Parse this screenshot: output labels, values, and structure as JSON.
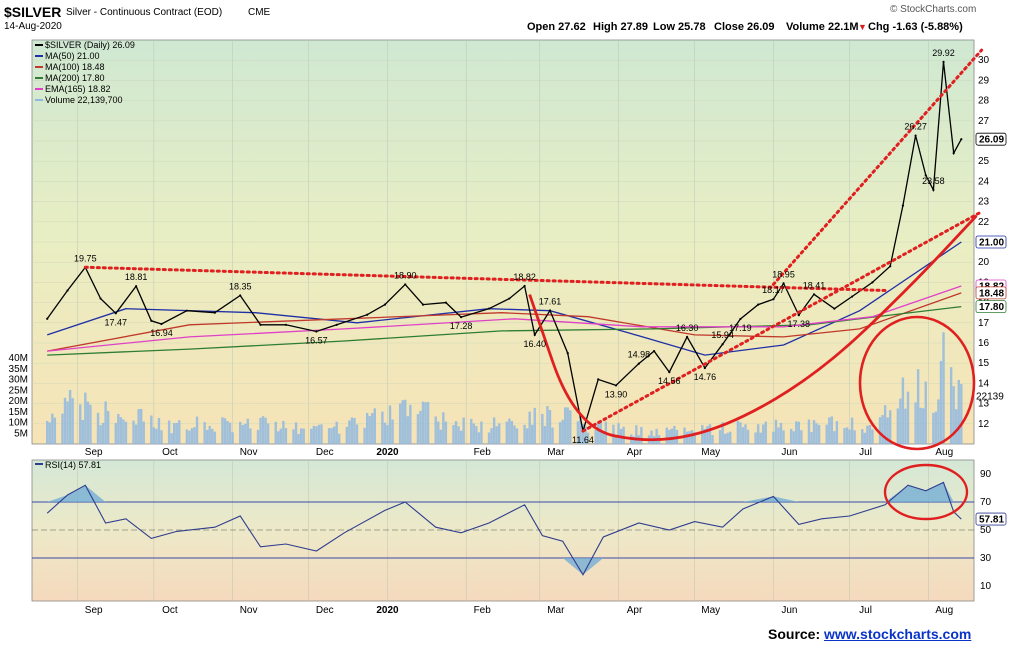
{
  "header": {
    "symbol": "$SILVER",
    "name": "Silver - Continuous Contract (EOD)",
    "exchange": "CME",
    "date": "14-Aug-2020",
    "copyright": "© StockCharts.com",
    "ohlc": {
      "open": "Open 27.62",
      "high": "High 27.89",
      "low": "Low 25.78",
      "close": "Close 26.09",
      "volume": "Volume 22.1M",
      "change": "Chg -1.63 (-5.88%)"
    },
    "change_arrow": "▼"
  },
  "legend": [
    {
      "text": "$SILVER (Daily) 26.09",
      "color": "#000000"
    },
    {
      "text": "MA(50) 21.00",
      "color": "#1f2fa6"
    },
    {
      "text": "MA(100) 18.48",
      "color": "#c0392b"
    },
    {
      "text": "MA(200) 17.80",
      "color": "#2e7d32"
    },
    {
      "text": "EMA(165) 18.82",
      "color": "#e040c8"
    },
    {
      "text": "Volume 22,139,700",
      "color": "#8fb8e0"
    }
  ],
  "rsi_legend": "RSI(14) 57.81",
  "source": {
    "prefix": "Source: ",
    "link": "www.stockcharts.com"
  },
  "chart_data": [
    {
      "type": "line",
      "title": "$SILVER (Daily)",
      "x_tick_labels": [
        "Sep",
        "Oct",
        "Nov",
        "Dec",
        "2020",
        "Feb",
        "Mar",
        "Apr",
        "May",
        "Jun",
        "Jul",
        "Aug"
      ],
      "y_tick_labels": [
        "12",
        "13",
        "14",
        "15",
        "16",
        "17",
        "18",
        "19",
        "20",
        "21",
        "22",
        "23",
        "24",
        "25",
        "26",
        "27",
        "28",
        "29",
        "30"
      ],
      "volume_axis_labels": [
        "5M",
        "10M",
        "15M",
        "20M",
        "25M",
        "30M",
        "35M",
        "40M"
      ],
      "ylim": [
        11,
        31
      ],
      "price_series": [
        {
          "date": "2019-08-20",
          "close": 17.2
        },
        {
          "date": "2019-08-28",
          "close": 18.6
        },
        {
          "date": "2019-09-04",
          "close": 19.75
        },
        {
          "date": "2019-09-10",
          "close": 18.2
        },
        {
          "date": "2019-09-16",
          "close": 17.47
        },
        {
          "date": "2019-09-24",
          "close": 18.81
        },
        {
          "date": "2019-09-30",
          "close": 17.1
        },
        {
          "date": "2019-10-04",
          "close": 16.94
        },
        {
          "date": "2019-10-14",
          "close": 17.6
        },
        {
          "date": "2019-10-25",
          "close": 17.5
        },
        {
          "date": "2019-11-04",
          "close": 18.35
        },
        {
          "date": "2019-11-12",
          "close": 16.9
        },
        {
          "date": "2019-11-22",
          "close": 16.9
        },
        {
          "date": "2019-12-04",
          "close": 16.57
        },
        {
          "date": "2019-12-12",
          "close": 16.9
        },
        {
          "date": "2019-12-24",
          "close": 17.4
        },
        {
          "date": "2019-12-31",
          "close": 17.9
        },
        {
          "date": "2020-01-08",
          "close": 18.9
        },
        {
          "date": "2020-01-15",
          "close": 17.9
        },
        {
          "date": "2020-01-24",
          "close": 18.0
        },
        {
          "date": "2020-01-30",
          "close": 17.28
        },
        {
          "date": "2020-02-10",
          "close": 17.7
        },
        {
          "date": "2020-02-18",
          "close": 18.2
        },
        {
          "date": "2020-02-24",
          "close": 18.82
        },
        {
          "date": "2020-02-28",
          "close": 16.4
        },
        {
          "date": "2020-03-05",
          "close": 17.61
        },
        {
          "date": "2020-03-12",
          "close": 15.5
        },
        {
          "date": "2020-03-18",
          "close": 11.64
        },
        {
          "date": "2020-03-24",
          "close": 14.2
        },
        {
          "date": "2020-03-31",
          "close": 13.9
        },
        {
          "date": "2020-04-09",
          "close": 14.98
        },
        {
          "date": "2020-04-15",
          "close": 15.6
        },
        {
          "date": "2020-04-21",
          "close": 14.56
        },
        {
          "date": "2020-04-28",
          "close": 16.3
        },
        {
          "date": "2020-05-05",
          "close": 14.76
        },
        {
          "date": "2020-05-12",
          "close": 15.94
        },
        {
          "date": "2020-05-19",
          "close": 17.19
        },
        {
          "date": "2020-05-26",
          "close": 17.9
        },
        {
          "date": "2020-06-01",
          "close": 18.17
        },
        {
          "date": "2020-06-05",
          "close": 18.95
        },
        {
          "date": "2020-06-11",
          "close": 17.38
        },
        {
          "date": "2020-06-17",
          "close": 18.41
        },
        {
          "date": "2020-06-25",
          "close": 17.7
        },
        {
          "date": "2020-07-02",
          "close": 18.3
        },
        {
          "date": "2020-07-10",
          "close": 19.0
        },
        {
          "date": "2020-07-17",
          "close": 19.8
        },
        {
          "date": "2020-07-22",
          "close": 22.8
        },
        {
          "date": "2020-07-27",
          "close": 26.27
        },
        {
          "date": "2020-07-31",
          "close": 24.3
        },
        {
          "date": "2020-08-03",
          "close": 23.58
        },
        {
          "date": "2020-08-07",
          "close": 29.92
        },
        {
          "date": "2020-08-11",
          "close": 25.4
        },
        {
          "date": "2020-08-14",
          "close": 26.09
        }
      ],
      "price_annotations": [
        {
          "date": "2019-09-04",
          "value": "19.75"
        },
        {
          "date": "2019-09-16",
          "value": "17.47"
        },
        {
          "date": "2019-09-24",
          "value": "18.81"
        },
        {
          "date": "2019-10-04",
          "value": "16.94"
        },
        {
          "date": "2019-11-04",
          "value": "18.35"
        },
        {
          "date": "2019-12-04",
          "value": "16.57"
        },
        {
          "date": "2020-01-08",
          "value": "18.90"
        },
        {
          "date": "2020-01-30",
          "value": "17.28"
        },
        {
          "date": "2020-02-24",
          "value": "18.82"
        },
        {
          "date": "2020-02-28",
          "value": "16.40"
        },
        {
          "date": "2020-03-05",
          "value": "17.61"
        },
        {
          "date": "2020-03-18",
          "value": "11.64"
        },
        {
          "date": "2020-03-31",
          "value": "13.90"
        },
        {
          "date": "2020-04-09",
          "value": "14.98"
        },
        {
          "date": "2020-04-21",
          "value": "14.56"
        },
        {
          "date": "2020-04-28",
          "value": "16.30"
        },
        {
          "date": "2020-05-05",
          "value": "14.76"
        },
        {
          "date": "2020-05-12",
          "value": "15.94"
        },
        {
          "date": "2020-05-19",
          "value": "17.19"
        },
        {
          "date": "2020-06-01",
          "value": "18.17"
        },
        {
          "date": "2020-06-05",
          "value": "18.95"
        },
        {
          "date": "2020-06-11",
          "value": "17.38"
        },
        {
          "date": "2020-06-17",
          "value": "18.41"
        },
        {
          "date": "2020-07-27",
          "value": "26.27"
        },
        {
          "date": "2020-08-03",
          "value": "23.58"
        },
        {
          "date": "2020-08-07",
          "value": "29.92"
        }
      ],
      "moving_averages": [
        {
          "name": "MA(50)",
          "color": "#1f2fa6",
          "last": 21.0,
          "points": [
            {
              "date": "2019-08-20",
              "v": 16.4
            },
            {
              "date": "2019-09-20",
              "v": 17.7
            },
            {
              "date": "2019-11-10",
              "v": 17.5
            },
            {
              "date": "2019-12-20",
              "v": 17.0
            },
            {
              "date": "2020-02-10",
              "v": 17.7
            },
            {
              "date": "2020-03-05",
              "v": 17.6
            },
            {
              "date": "2020-04-05",
              "v": 16.5
            },
            {
              "date": "2020-05-05",
              "v": 15.4
            },
            {
              "date": "2020-06-05",
              "v": 15.9
            },
            {
              "date": "2020-07-05",
              "v": 17.6
            },
            {
              "date": "2020-08-14",
              "v": 21.0
            }
          ]
        },
        {
          "name": "MA(100)",
          "color": "#c0392b",
          "last": 18.48,
          "points": [
            {
              "date": "2019-08-20",
              "v": 15.6
            },
            {
              "date": "2019-10-15",
              "v": 16.9
            },
            {
              "date": "2019-12-15",
              "v": 17.2
            },
            {
              "date": "2020-02-15",
              "v": 17.5
            },
            {
              "date": "2020-03-20",
              "v": 17.3
            },
            {
              "date": "2020-05-01",
              "v": 16.4
            },
            {
              "date": "2020-06-05",
              "v": 16.3
            },
            {
              "date": "2020-07-05",
              "v": 16.7
            },
            {
              "date": "2020-08-14",
              "v": 18.48
            }
          ]
        },
        {
          "name": "MA(200)",
          "color": "#2e7d32",
          "last": 17.8,
          "points": [
            {
              "date": "2019-08-20",
              "v": 15.4
            },
            {
              "date": "2019-10-15",
              "v": 15.7
            },
            {
              "date": "2019-12-15",
              "v": 16.1
            },
            {
              "date": "2020-02-15",
              "v": 16.6
            },
            {
              "date": "2020-04-15",
              "v": 16.7
            },
            {
              "date": "2020-06-15",
              "v": 16.9
            },
            {
              "date": "2020-08-14",
              "v": 17.8
            }
          ]
        },
        {
          "name": "EMA(165)",
          "color": "#e040c8",
          "last": 18.82,
          "points": [
            {
              "date": "2019-08-20",
              "v": 15.6
            },
            {
              "date": "2019-10-15",
              "v": 16.3
            },
            {
              "date": "2019-12-15",
              "v": 16.7
            },
            {
              "date": "2020-02-20",
              "v": 17.2
            },
            {
              "date": "2020-04-10",
              "v": 16.8
            },
            {
              "date": "2020-06-05",
              "v": 16.8
            },
            {
              "date": "2020-07-10",
              "v": 17.3
            },
            {
              "date": "2020-08-14",
              "v": 18.82
            }
          ]
        }
      ],
      "right_axis_value_tags": [
        {
          "value": 26.09,
          "label": "26.09"
        },
        {
          "value": 21.0,
          "label": "21.00"
        },
        {
          "value": 18.82,
          "label": "18.82"
        },
        {
          "value": 18.48,
          "label": "18.48"
        },
        {
          "value": 17.8,
          "label": "17.80"
        }
      ],
      "volume_last_label": "22139",
      "volume_millions": [
        {
          "date": "2019-08-20",
          "v": 9
        },
        {
          "date": "2019-08-30",
          "v": 20
        },
        {
          "date": "2019-09-10",
          "v": 14
        },
        {
          "date": "2019-09-25",
          "v": 12
        },
        {
          "date": "2019-10-10",
          "v": 8
        },
        {
          "date": "2019-10-30",
          "v": 10
        },
        {
          "date": "2019-11-15",
          "v": 9
        },
        {
          "date": "2019-12-10",
          "v": 7
        },
        {
          "date": "2020-01-08",
          "v": 18
        },
        {
          "date": "2020-01-25",
          "v": 10
        },
        {
          "date": "2020-02-15",
          "v": 9
        },
        {
          "date": "2020-02-28",
          "v": 14
        },
        {
          "date": "2020-03-10",
          "v": 13
        },
        {
          "date": "2020-03-18",
          "v": 8
        },
        {
          "date": "2020-04-10",
          "v": 6
        },
        {
          "date": "2020-05-10",
          "v": 7
        },
        {
          "date": "2020-06-05",
          "v": 9
        },
        {
          "date": "2020-07-10",
          "v": 9
        },
        {
          "date": "2020-07-27",
          "v": 27
        },
        {
          "date": "2020-08-03",
          "v": 22
        },
        {
          "date": "2020-08-07",
          "v": 38
        },
        {
          "date": "2020-08-14",
          "v": 22
        }
      ],
      "trend_lines": [
        {
          "style": "dotted",
          "color": "#e02020",
          "from": {
            "date": "2019-09-04",
            "v": 19.75
          },
          "to": {
            "date": "2020-07-15",
            "v": 18.6
          }
        },
        {
          "style": "dotted",
          "color": "#e02020",
          "from": {
            "date": "2020-03-18",
            "v": 11.64
          },
          "to": {
            "date": "2020-08-22",
            "v": 22.5
          }
        },
        {
          "style": "dotted",
          "color": "#e02020",
          "from": {
            "date": "2020-06-01",
            "v": 18.9
          },
          "to": {
            "date": "2020-08-22",
            "v": 30.5
          }
        }
      ],
      "curve_annotation": {
        "color": "#e02020",
        "points": [
          {
            "date": "2020-02-26",
            "v": 18.4
          },
          {
            "date": "2020-03-15",
            "v": 11.8
          },
          {
            "date": "2020-04-15",
            "v": 11.0
          },
          {
            "date": "2020-05-15",
            "v": 11.9
          },
          {
            "date": "2020-06-20",
            "v": 14.6
          },
          {
            "date": "2020-07-25",
            "v": 18.8
          },
          {
            "date": "2020-08-20",
            "v": 22.3
          }
        ]
      }
    },
    {
      "type": "line",
      "title": "RSI(14)",
      "y_tick_labels": [
        "10",
        "30",
        "50",
        "70",
        "90"
      ],
      "ylim": [
        0,
        100
      ],
      "reference_lines": [
        30,
        70
      ],
      "last": 57.81,
      "series": [
        {
          "date": "2019-08-20",
          "v": 62
        },
        {
          "date": "2019-08-28",
          "v": 75
        },
        {
          "date": "2019-09-04",
          "v": 82
        },
        {
          "date": "2019-09-12",
          "v": 55
        },
        {
          "date": "2019-09-20",
          "v": 58
        },
        {
          "date": "2019-09-30",
          "v": 44
        },
        {
          "date": "2019-10-10",
          "v": 49
        },
        {
          "date": "2019-10-25",
          "v": 52
        },
        {
          "date": "2019-11-04",
          "v": 60
        },
        {
          "date": "2019-11-12",
          "v": 38
        },
        {
          "date": "2019-11-22",
          "v": 40
        },
        {
          "date": "2019-12-04",
          "v": 35
        },
        {
          "date": "2019-12-15",
          "v": 48
        },
        {
          "date": "2019-12-31",
          "v": 64
        },
        {
          "date": "2020-01-08",
          "v": 70
        },
        {
          "date": "2020-01-20",
          "v": 52
        },
        {
          "date": "2020-01-30",
          "v": 48
        },
        {
          "date": "2020-02-10",
          "v": 55
        },
        {
          "date": "2020-02-24",
          "v": 68
        },
        {
          "date": "2020-03-02",
          "v": 46
        },
        {
          "date": "2020-03-10",
          "v": 42
        },
        {
          "date": "2020-03-18",
          "v": 18
        },
        {
          "date": "2020-03-26",
          "v": 45
        },
        {
          "date": "2020-04-09",
          "v": 55
        },
        {
          "date": "2020-04-21",
          "v": 50
        },
        {
          "date": "2020-05-01",
          "v": 56
        },
        {
          "date": "2020-05-12",
          "v": 52
        },
        {
          "date": "2020-05-20",
          "v": 65
        },
        {
          "date": "2020-06-01",
          "v": 74
        },
        {
          "date": "2020-06-11",
          "v": 54
        },
        {
          "date": "2020-06-20",
          "v": 58
        },
        {
          "date": "2020-07-01",
          "v": 60
        },
        {
          "date": "2020-07-15",
          "v": 68
        },
        {
          "date": "2020-07-24",
          "v": 82
        },
        {
          "date": "2020-07-31",
          "v": 78
        },
        {
          "date": "2020-08-07",
          "v": 84
        },
        {
          "date": "2020-08-11",
          "v": 63
        },
        {
          "date": "2020-08-14",
          "v": 57.81
        }
      ]
    }
  ]
}
